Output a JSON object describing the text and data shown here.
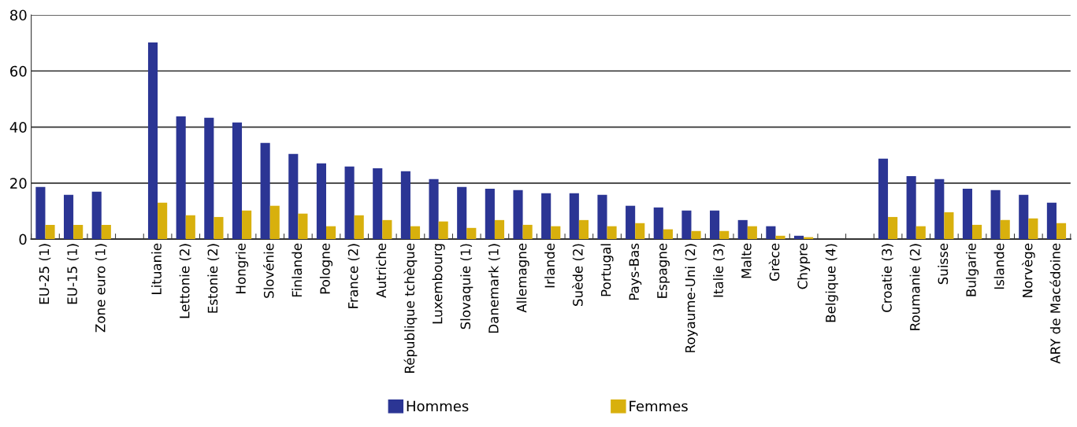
{
  "chart_data": {
    "type": "bar",
    "categories": [
      "EU-25 (1)",
      "EU-15 (1)",
      "Zone euro (1)",
      null,
      "Lituanie",
      "Lettonie (2)",
      "Estonie (2)",
      "Hongrie",
      "Slovénie",
      "Finlande",
      "Pologne",
      "France (2)",
      "Autriche",
      "République tchèque",
      "Luxembourg",
      "Slovaquie (1)",
      "Danemark (1)",
      "Allemagne",
      "Irlande",
      "Suède (2)",
      "Portugal",
      "Pays-Bas",
      "Espagne",
      "Royaume-Uni (2)",
      "Italie (3)",
      "Malte",
      "Grèce",
      "Chypre",
      "Belgique (4)",
      null,
      "Croatie (3)",
      "Roumanie (2)",
      "Suisse",
      "Bulgarie",
      "Islande",
      "Norvège",
      "ARY de Macédoine"
    ],
    "series": [
      {
        "name": "Hommes",
        "color": "#2b3594",
        "values": [
          18.6,
          15.8,
          16.9,
          null,
          70.2,
          43.8,
          43.3,
          41.6,
          34.3,
          30.4,
          27.0,
          25.9,
          25.3,
          24.2,
          21.4,
          18.6,
          18.0,
          17.5,
          16.4,
          16.4,
          15.8,
          11.9,
          11.3,
          10.2,
          10.2,
          6.8,
          4.6,
          1.2,
          null,
          null,
          28.7,
          22.5,
          21.4,
          18.0,
          17.5,
          15.8,
          13.0
        ]
      },
      {
        "name": "Femmes",
        "color": "#d8b00d",
        "values": [
          5.1,
          5.1,
          5.1,
          null,
          13.0,
          8.5,
          7.9,
          10.2,
          11.9,
          9.1,
          4.6,
          8.5,
          6.8,
          4.6,
          6.3,
          4.0,
          6.8,
          5.1,
          4.6,
          6.8,
          4.6,
          5.7,
          3.5,
          2.9,
          2.9,
          4.6,
          1.2,
          0.7,
          null,
          null,
          7.9,
          4.6,
          9.6,
          5.1,
          6.8,
          7.4,
          5.7
        ]
      }
    ],
    "ylim": [
      0,
      80
    ],
    "yticks": [
      0,
      20,
      40,
      60,
      80
    ],
    "grid": "y",
    "legend": "bottom"
  }
}
